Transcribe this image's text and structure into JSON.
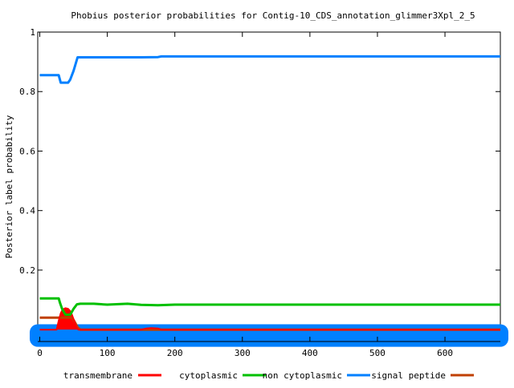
{
  "chart_data": {
    "type": "line",
    "title": "Phobius posterior probabilities for Contig-10_CDS_annotation_glimmer3Xpl_2_5",
    "xlabel": "",
    "ylabel": "Posterior label probability",
    "xlim": [
      -3,
      682
    ],
    "ylim": [
      -0.04,
      1
    ],
    "xticks": [
      0,
      100,
      200,
      300,
      400,
      500,
      600
    ],
    "yticks": [
      0.2,
      0.4,
      0.6,
      0.8,
      1
    ],
    "ytick_labels": [
      "0.2",
      "0.4",
      "0.6",
      "0.8",
      "1"
    ],
    "grid": false,
    "legend_position": "bottom",
    "series": [
      {
        "name": "transmembrane",
        "color": "#ff0000",
        "x": [
          0,
          25,
          28,
          31,
          34,
          38,
          42,
          46,
          50,
          54,
          57,
          60,
          150,
          158,
          165,
          175,
          180,
          682
        ],
        "y": [
          0.0,
          0.0,
          0.03,
          0.055,
          0.068,
          0.072,
          0.07,
          0.06,
          0.035,
          0.01,
          0.0,
          0.0,
          0.0,
          0.004,
          0.005,
          0.004,
          0.0,
          0.0
        ]
      },
      {
        "name": "cytoplasmic",
        "color": "#00c000",
        "x": [
          0,
          28,
          30,
          33,
          38,
          45,
          50,
          55,
          60,
          80,
          100,
          130,
          150,
          175,
          200,
          682
        ],
        "y": [
          0.105,
          0.105,
          0.09,
          0.07,
          0.05,
          0.05,
          0.07,
          0.085,
          0.087,
          0.087,
          0.084,
          0.087,
          0.083,
          0.082,
          0.084,
          0.084
        ]
      },
      {
        "name": "non cytoplasmic",
        "color": "#0080ff",
        "x": [
          0,
          28,
          31,
          42,
          45,
          50,
          56,
          60,
          100,
          150,
          175,
          180,
          682
        ],
        "y": [
          0.855,
          0.855,
          0.83,
          0.83,
          0.84,
          0.87,
          0.915,
          0.915,
          0.915,
          0.915,
          0.916,
          0.918,
          0.918
        ]
      },
      {
        "name": "signal peptide",
        "color": "#c04000",
        "x": [
          0,
          28,
          48,
          52,
          56,
          60,
          682
        ],
        "y": [
          0.04,
          0.04,
          0.04,
          0.025,
          0.008,
          0.0,
          0.0
        ]
      }
    ]
  }
}
